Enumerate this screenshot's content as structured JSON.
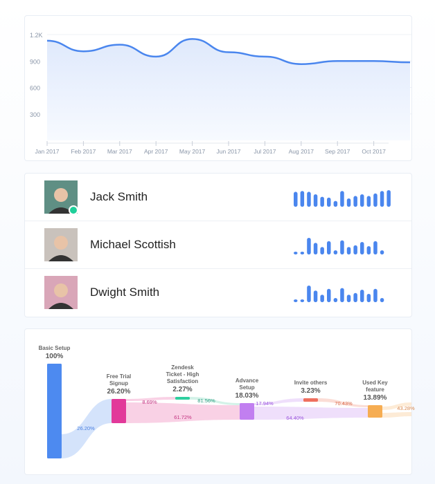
{
  "chart_data": [
    {
      "type": "area",
      "x": [
        "Jan 2017",
        "Feb 2017",
        "Mar 2017",
        "Apr 2017",
        "May 2017",
        "Jun 2017",
        "Jul 2017",
        "Aug 2017",
        "Sep 2017",
        "Oct 2017",
        ""
      ],
      "values": [
        1130,
        1010,
        1085,
        950,
        1150,
        1000,
        950,
        865,
        900,
        900,
        885
      ],
      "yticks": [
        "300",
        "600",
        "900",
        "1.2K"
      ],
      "ytick_values": [
        300,
        600,
        900,
        1200
      ],
      "ylim": [
        0,
        1350
      ],
      "grid": true,
      "color": "#4a86ee"
    },
    {
      "type": "sankey",
      "nodes": [
        {
          "name": "Basic Setup",
          "value": "100%",
          "color": "#4d8af0"
        },
        {
          "name": "Free Trial Signup",
          "value": "26.20%",
          "color": "#e2399a"
        },
        {
          "name": "Zendesk Ticket - High Satisfaction",
          "value": "2.27%",
          "color": "#2ecf9f"
        },
        {
          "name": "Advance Setup",
          "value": "18.03%",
          "color": "#c17ff0"
        },
        {
          "name": "Invite others",
          "value": "3.23%",
          "color": "#ef6f5f"
        },
        {
          "name": "Used Key feature",
          "value": "13.89%",
          "color": "#f6ad52"
        }
      ],
      "links": [
        {
          "from": "Basic Setup",
          "to": "Free Trial Signup",
          "label": "26.20%",
          "color": "#4a7fe0"
        },
        {
          "from": "Free Trial Signup",
          "to": "Zendesk Ticket - High Satisfaction",
          "label": "8.69%",
          "color": "#c2317f"
        },
        {
          "from": "Zendesk Ticket - High Satisfaction",
          "to": "Advance Setup",
          "label": "81.56%",
          "color": "#2b9c80"
        },
        {
          "from": "Free Trial Signup",
          "to": "Advance Setup",
          "label": "61.72%",
          "color": "#c2317f"
        },
        {
          "from": "Advance Setup",
          "to": "Invite others",
          "label": "17.94%",
          "color": "#9a55dd"
        },
        {
          "from": "Invite others",
          "to": "Used Key feature",
          "label": "70.43%",
          "color": "#d86a4a"
        },
        {
          "from": "Advance Setup",
          "to": "Used Key feature",
          "label": "64.40%",
          "color": "#9a55dd"
        },
        {
          "from": "Used Key feature",
          "to": "",
          "label": "43.28%",
          "color": "#d8864a"
        }
      ]
    }
  ],
  "users": [
    {
      "name": "Jack Smith",
      "online": true,
      "activity": [
        0.9,
        0.95,
        0.9,
        0.75,
        0.6,
        0.55,
        0.35,
        0.95,
        0.5,
        0.65,
        0.75,
        0.65,
        0.8,
        0.95,
        1.0
      ],
      "avatar_bg": "#5f8f84"
    },
    {
      "name": "Michael Scottish",
      "online": false,
      "activity": [
        0.12,
        0.12,
        1,
        0.7,
        0.45,
        0.8,
        0.25,
        0.85,
        0.45,
        0.55,
        0.75,
        0.5,
        0.8,
        0.25
      ],
      "avatar_bg": "#c9c2bc"
    },
    {
      "name": "Dwight Smith",
      "online": false,
      "activity": [
        0.12,
        0.12,
        1,
        0.7,
        0.45,
        0.8,
        0.25,
        0.85,
        0.45,
        0.55,
        0.75,
        0.5,
        0.8,
        0.25
      ],
      "avatar_bg": "#d9a6b8"
    }
  ],
  "colors": {
    "accent": "#4a86ee",
    "online": "#1fcf9a"
  }
}
